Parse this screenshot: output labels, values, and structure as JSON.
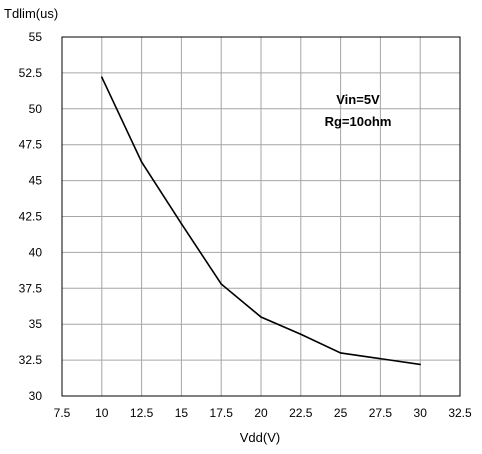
{
  "chart_data": {
    "type": "line",
    "xlabel": "Vdd(V)",
    "ylabel": "Tdlim(us)",
    "xlim": [
      7.5,
      32.5
    ],
    "ylim": [
      30,
      55
    ],
    "x_ticks": [
      "7.5",
      "10",
      "12.5",
      "15",
      "17.5",
      "20",
      "22.5",
      "25",
      "27.5",
      "30",
      "32.5"
    ],
    "y_ticks": [
      "30",
      "32.5",
      "35",
      "37.5",
      "40",
      "42.5",
      "45",
      "47.5",
      "50",
      "52.5",
      "55"
    ],
    "grid": true,
    "annotations": [
      "Vin=5V",
      "Rg=10ohm"
    ],
    "series": [
      {
        "x": [
          10,
          12.5,
          15,
          17.5,
          20,
          22.5,
          25,
          27.5,
          30
        ],
        "y": [
          52.2,
          46.3,
          42.0,
          37.8,
          35.5,
          34.3,
          33.0,
          32.6,
          32.2
        ],
        "color": "#000000"
      }
    ]
  }
}
